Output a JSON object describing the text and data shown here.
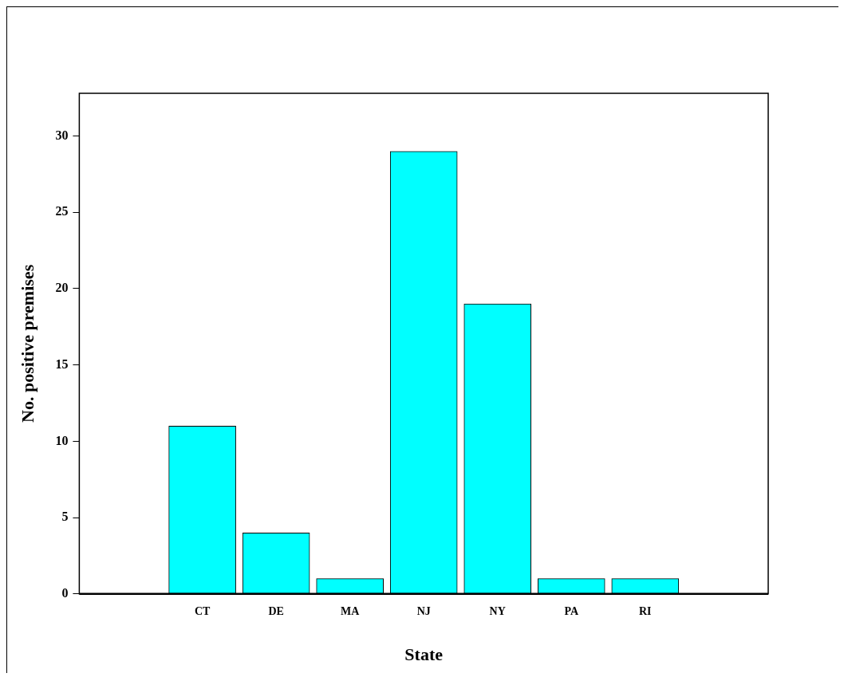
{
  "chart_data": {
    "type": "bar",
    "xlabel": "State",
    "ylabel": "No. positive premises",
    "categories": [
      "CT",
      "DE",
      "MA",
      "NJ",
      "NY",
      "PA",
      "RI"
    ],
    "values": [
      11,
      4,
      1,
      29,
      19,
      1,
      1
    ],
    "color": "#00ffff",
    "ylim": [
      0,
      32.8
    ],
    "yticks": [
      0,
      5,
      10,
      15,
      20,
      25,
      30
    ],
    "grid": false,
    "legend": false
  }
}
